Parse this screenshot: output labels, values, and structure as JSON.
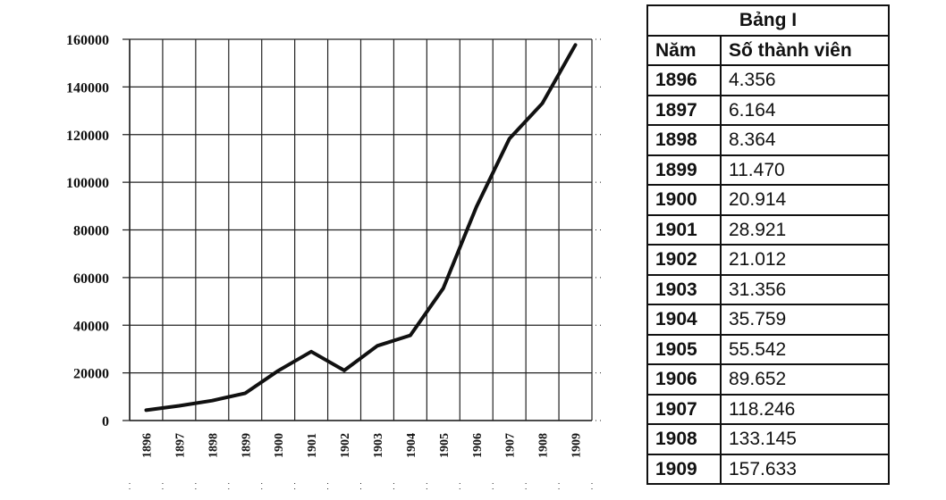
{
  "chart_data": {
    "type": "line",
    "x": [
      "1896",
      "1897",
      "1898",
      "1899",
      "1900",
      "1901",
      "1902",
      "1903",
      "1904",
      "1905",
      "1906",
      "1907",
      "1908",
      "1909"
    ],
    "series": [
      {
        "values": [
          4356,
          6164,
          8364,
          11470,
          20914,
          28921,
          21012,
          31356,
          35759,
          55542,
          89652,
          118246,
          133145,
          157633
        ]
      }
    ],
    "yticks": [
      "0",
      "20000",
      "40000",
      "60000",
      "80000",
      "100000",
      "120000",
      "140000",
      "160000"
    ],
    "ylim": [
      0,
      160000
    ],
    "grid": true,
    "line_color": "#111111"
  },
  "table": {
    "title": "Bảng I",
    "headers": [
      "Năm",
      "Số thành viên"
    ],
    "rows": [
      [
        "1896",
        "4.356"
      ],
      [
        "1897",
        "6.164"
      ],
      [
        "1898",
        "8.364"
      ],
      [
        "1899",
        "11.470"
      ],
      [
        "1900",
        "20.914"
      ],
      [
        "1901",
        "28.921"
      ],
      [
        "1902",
        "21.012"
      ],
      [
        "1903",
        "31.356"
      ],
      [
        "1904",
        "35.759"
      ],
      [
        "1905",
        "55.542"
      ],
      [
        "1906",
        "89.652"
      ],
      [
        "1907",
        "118.246"
      ],
      [
        "1908",
        "133.145"
      ],
      [
        "1909",
        "157.633"
      ]
    ]
  }
}
